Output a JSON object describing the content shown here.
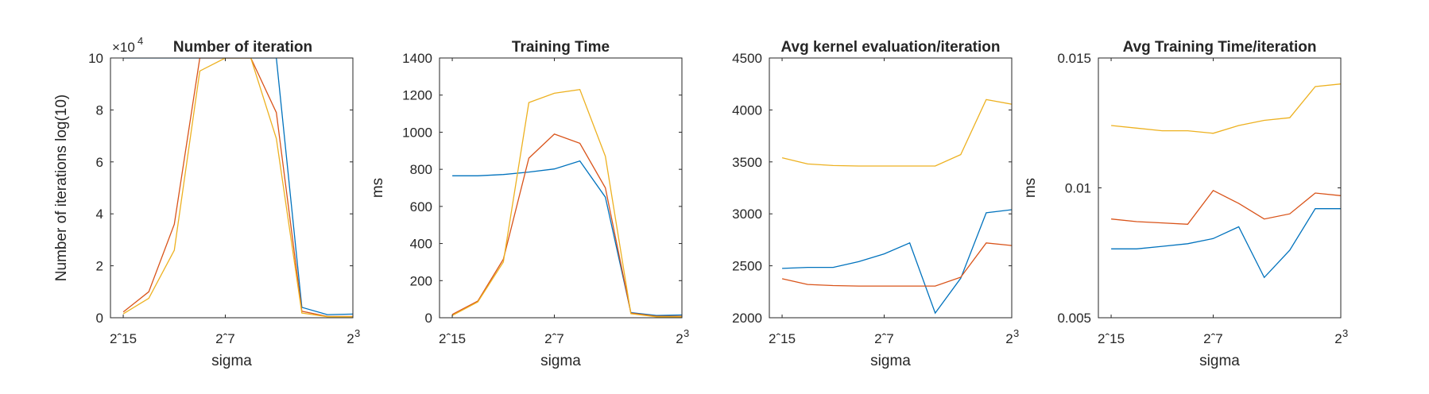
{
  "figure": {
    "background": "#ffffff",
    "axis_color": "#262626"
  },
  "chart_data": [
    {
      "type": "line",
      "title": "Number of iteration",
      "xlabel": "sigma",
      "ylabel": "Number of iterations log(10)",
      "exponent_label": "×10",
      "exponent_sup": "4",
      "x": [
        -15,
        -13,
        -11,
        -9,
        -7,
        -5,
        -3,
        -1,
        1,
        3
      ],
      "xlim": [
        -16,
        3
      ],
      "xtick_labels": [
        "2ˆ15",
        "2ˆ7",
        "2"
      ],
      "xtick_sup": "3",
      "ylim": [
        0,
        10
      ],
      "yticks": [
        "0",
        "2",
        "4",
        "6",
        "8",
        "10"
      ],
      "grid": false,
      "series": [
        {
          "color": "#0072BD",
          "values": [
            10,
            10,
            10,
            10,
            10,
            10,
            10,
            0.4,
            0.12,
            0.14
          ]
        },
        {
          "color": "#D95319",
          "values": [
            0.22,
            1.0,
            3.6,
            10,
            10,
            10,
            7.9,
            0.25,
            0.05,
            0.05
          ]
        },
        {
          "color": "#EDB120",
          "values": [
            0.15,
            0.75,
            2.6,
            9.5,
            10,
            10,
            6.9,
            0.18,
            0.04,
            0.04
          ]
        }
      ]
    },
    {
      "type": "line",
      "title": "Training Time",
      "xlabel": "sigma",
      "ylabel": "ms",
      "x": [
        -15,
        -13,
        -11,
        -9,
        -7,
        -5,
        -3,
        -1,
        1,
        3
      ],
      "xlim": [
        -16,
        3
      ],
      "xtick_labels": [
        "2ˆ15",
        "2ˆ7",
        "2"
      ],
      "xtick_sup": "3",
      "ylim": [
        0,
        1400
      ],
      "yticks": [
        "0",
        "200",
        "400",
        "600",
        "800",
        "1000",
        "1200",
        "1400"
      ],
      "grid": false,
      "series": [
        {
          "color": "#0072BD",
          "values": [
            765,
            765,
            772,
            785,
            802,
            845,
            650,
            28,
            12,
            15
          ]
        },
        {
          "color": "#D95319",
          "values": [
            18,
            90,
            315,
            860,
            990,
            940,
            700,
            25,
            8,
            8
          ]
        },
        {
          "color": "#EDB120",
          "values": [
            12,
            85,
            300,
            1160,
            1210,
            1230,
            870,
            22,
            5,
            5
          ]
        }
      ]
    },
    {
      "type": "line",
      "title": "Avg kernel evaluation/iteration",
      "xlabel": "sigma",
      "ylabel": "",
      "x": [
        -15,
        -13,
        -11,
        -9,
        -7,
        -5,
        -3,
        -1,
        1,
        3
      ],
      "xlim": [
        -16,
        3
      ],
      "xtick_labels": [
        "2ˆ15",
        "2ˆ7",
        "2"
      ],
      "xtick_sup": "3",
      "ylim": [
        2000,
        4500
      ],
      "yticks": [
        "2000",
        "2500",
        "3000",
        "3500",
        "4000",
        "4500"
      ],
      "grid": false,
      "series": [
        {
          "color": "#0072BD",
          "values": [
            2475,
            2485,
            2485,
            2540,
            2615,
            2720,
            2045,
            2380,
            3010,
            3040
          ]
        },
        {
          "color": "#D95319",
          "values": [
            2375,
            2320,
            2310,
            2305,
            2305,
            2305,
            2305,
            2390,
            2720,
            2695
          ]
        },
        {
          "color": "#EDB120",
          "values": [
            3540,
            3480,
            3465,
            3460,
            3460,
            3460,
            3460,
            3570,
            4100,
            4055
          ]
        }
      ]
    },
    {
      "type": "line",
      "title": "Avg Training Time/iteration",
      "xlabel": "sigma",
      "ylabel": "ms",
      "x": [
        -15,
        -13,
        -11,
        -9,
        -7,
        -5,
        -3,
        -1,
        1,
        3
      ],
      "xlim": [
        -16,
        3
      ],
      "xtick_labels": [
        "2ˆ15",
        "2ˆ7",
        "2"
      ],
      "xtick_sup": "3",
      "ylim": [
        0.005,
        0.015
      ],
      "yticks": [
        "0.005",
        "0.01",
        "0.015"
      ],
      "grid": false,
      "series": [
        {
          "color": "#0072BD",
          "values": [
            0.00765,
            0.00765,
            0.00775,
            0.00785,
            0.00805,
            0.0085,
            0.00655,
            0.0076,
            0.0092,
            0.0092
          ]
        },
        {
          "color": "#D95319",
          "values": [
            0.0088,
            0.0087,
            0.00865,
            0.0086,
            0.0099,
            0.0094,
            0.0088,
            0.009,
            0.0098,
            0.0097
          ]
        },
        {
          "color": "#EDB120",
          "values": [
            0.0124,
            0.0123,
            0.0122,
            0.0122,
            0.0121,
            0.0124,
            0.0126,
            0.0127,
            0.0139,
            0.014
          ]
        }
      ]
    }
  ]
}
